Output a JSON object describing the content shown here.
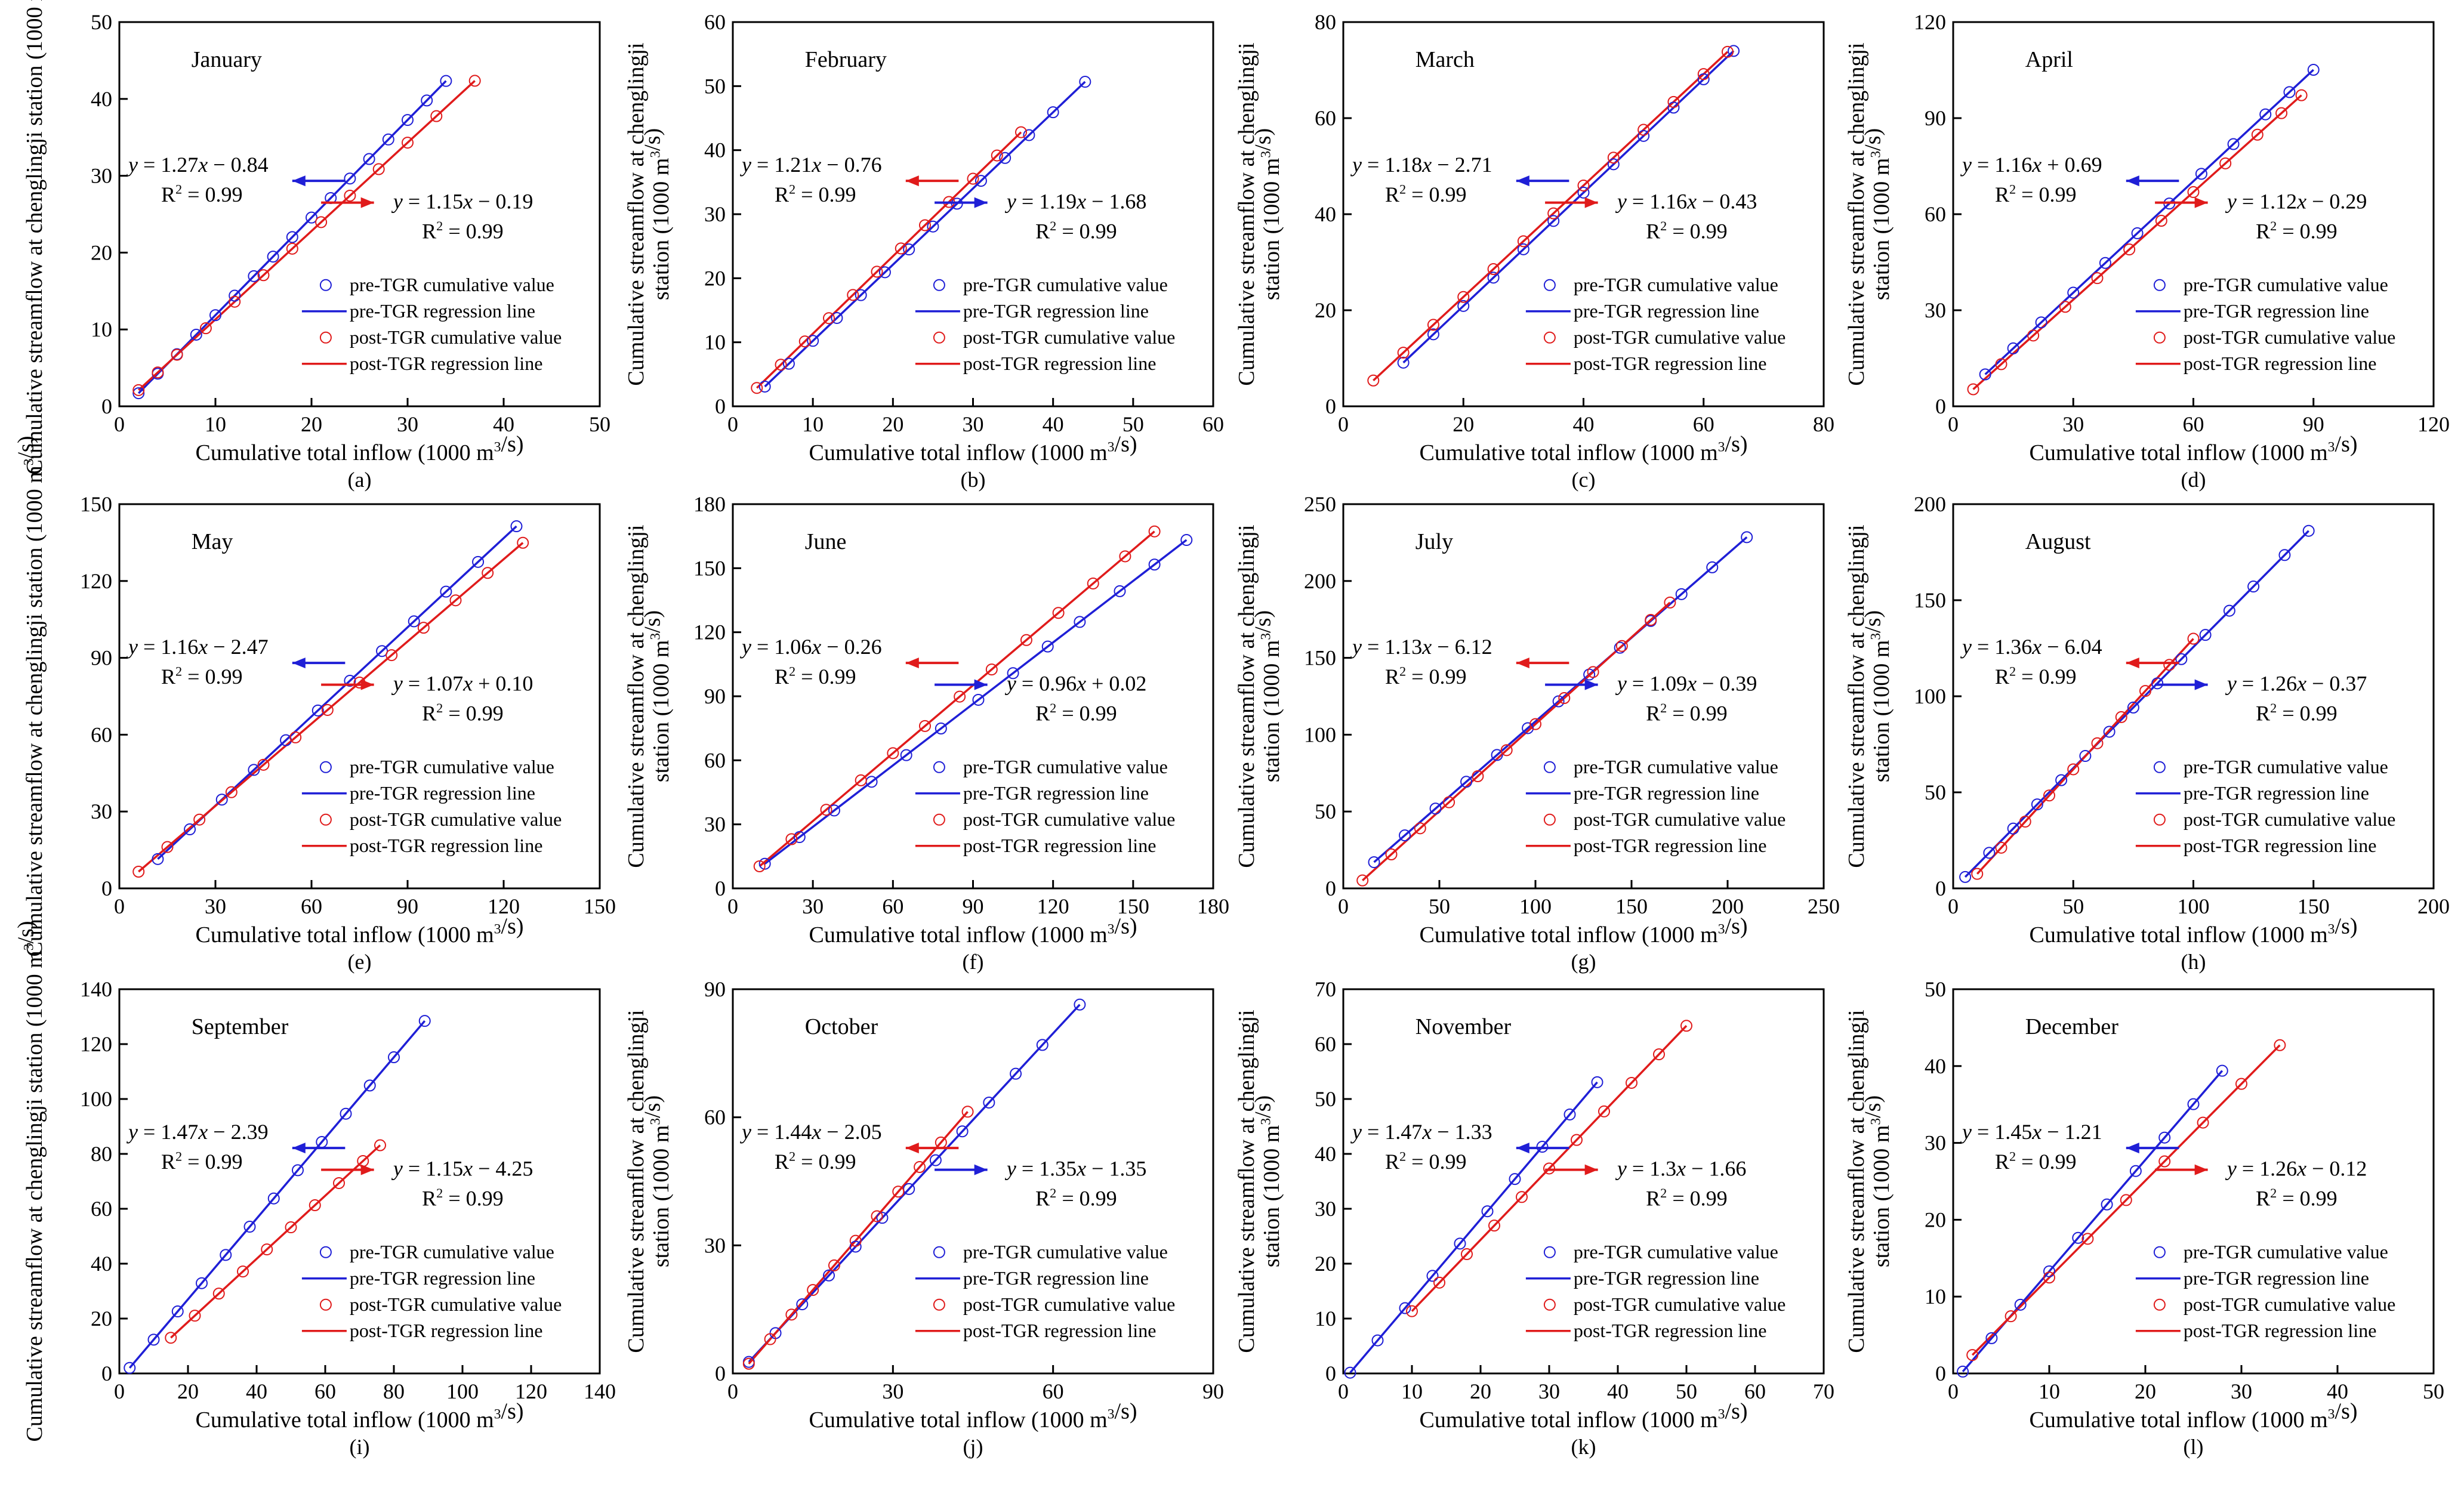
{
  "colors": {
    "pre": "#1f1fd6",
    "post": "#e01b1b",
    "axis": "#000000"
  },
  "legend_labels": {
    "pre_points": "pre-TGR cumulative value",
    "pre_line": "pre-TGR regression line",
    "post_points": "post-TGR cumulative value",
    "post_line": "post-TGR regression line"
  },
  "axis_labels": {
    "xlabel": "Cumulative total inflow (1000 m³/s)",
    "ylabel_full": "Cumulative streamflow at chenglingji station (1000 m³/s)",
    "ylabel_short": "station (1000 m³/s)"
  },
  "chart_data": [
    {
      "type": "scatter",
      "panel": "(a)",
      "title": "January",
      "xlim": [
        0,
        50
      ],
      "ylim": [
        0,
        50
      ],
      "xticks": [
        0,
        10,
        20,
        30,
        40,
        50
      ],
      "yticks": [
        0,
        10,
        20,
        30,
        40,
        50
      ],
      "pre": {
        "slope": 1.27,
        "intercept": -0.84,
        "r2": "0.99",
        "x": [
          2,
          4,
          6,
          8,
          10,
          12,
          14,
          16,
          18,
          20,
          22,
          24,
          26,
          28,
          30,
          32,
          34
        ]
      },
      "post": {
        "slope": 1.15,
        "intercept": -0.19,
        "r2": "0.99",
        "x": [
          2,
          4,
          6,
          9,
          12,
          15,
          18,
          21,
          24,
          27,
          30,
          33,
          37
        ]
      },
      "pre_eq": "y = 1.27x − 0.84",
      "post_eq": "y = 1.15x − 0.19"
    },
    {
      "type": "scatter",
      "panel": "(b)",
      "title": "February",
      "xlim": [
        0,
        60
      ],
      "ylim": [
        0,
        60
      ],
      "xticks": [
        0,
        10,
        20,
        30,
        40,
        50,
        60
      ],
      "yticks": [
        0,
        10,
        20,
        30,
        40,
        50,
        60
      ],
      "pre": {
        "slope": 1.19,
        "intercept": -1.68,
        "r2": "0.99",
        "x": [
          4,
          7,
          10,
          13,
          16,
          19,
          22,
          25,
          28,
          31,
          34,
          37,
          40,
          44
        ]
      },
      "post": {
        "slope": 1.21,
        "intercept": -0.76,
        "r2": "0.99",
        "x": [
          3,
          6,
          9,
          12,
          15,
          18,
          21,
          24,
          27,
          30,
          33,
          36
        ]
      },
      "pre_eq": "y = 1.19x − 1.68",
      "post_eq": "y = 1.21x − 0.76"
    },
    {
      "type": "scatter",
      "panel": "(c)",
      "title": "March",
      "xlim": [
        0,
        80
      ],
      "ylim": [
        0,
        80
      ],
      "xticks": [
        0,
        20,
        40,
        60,
        80
      ],
      "yticks": [
        0,
        20,
        40,
        60,
        80
      ],
      "pre": {
        "slope": 1.18,
        "intercept": -2.71,
        "r2": "0.99",
        "x": [
          10,
          15,
          20,
          25,
          30,
          35,
          40,
          45,
          50,
          55,
          60,
          65
        ]
      },
      "post": {
        "slope": 1.16,
        "intercept": -0.43,
        "r2": "0.99",
        "x": [
          5,
          10,
          15,
          20,
          25,
          30,
          35,
          40,
          45,
          50,
          55,
          60,
          64
        ]
      },
      "pre_eq": "y = 1.18x − 2.71",
      "post_eq": "y = 1.16x − 0.43"
    },
    {
      "type": "scatter",
      "panel": "(d)",
      "title": "April",
      "xlim": [
        0,
        120
      ],
      "ylim": [
        0,
        120
      ],
      "xticks": [
        0,
        30,
        60,
        90,
        120
      ],
      "yticks": [
        0,
        30,
        60,
        90,
        120
      ],
      "pre": {
        "slope": 1.16,
        "intercept": 0.69,
        "r2": "0.99",
        "x": [
          8,
          15,
          22,
          30,
          38,
          46,
          54,
          62,
          70,
          78,
          84,
          90
        ]
      },
      "post": {
        "slope": 1.12,
        "intercept": -0.29,
        "r2": "0.99",
        "x": [
          5,
          12,
          20,
          28,
          36,
          44,
          52,
          60,
          68,
          76,
          82,
          87
        ]
      },
      "pre_eq": "y = 1.16x + 0.69",
      "post_eq": "y = 1.12x − 0.29"
    },
    {
      "type": "scatter",
      "panel": "(e)",
      "title": "May",
      "xlim": [
        0,
        150
      ],
      "ylim": [
        0,
        150
      ],
      "xticks": [
        0,
        30,
        60,
        90,
        120,
        150
      ],
      "yticks": [
        0,
        30,
        60,
        90,
        120,
        150
      ],
      "pre": {
        "slope": 1.16,
        "intercept": -2.47,
        "r2": "0.99",
        "x": [
          12,
          22,
          32,
          42,
          52,
          62,
          72,
          82,
          92,
          102,
          112,
          124
        ]
      },
      "post": {
        "slope": 1.07,
        "intercept": 0.1,
        "r2": "0.99",
        "x": [
          6,
          15,
          25,
          35,
          45,
          55,
          65,
          75,
          85,
          95,
          105,
          115,
          126
        ]
      },
      "pre_eq": "y = 1.16x − 2.47",
      "post_eq": "y = 1.07x + 0.10"
    },
    {
      "type": "scatter",
      "panel": "(f)",
      "title": "June",
      "xlim": [
        0,
        180
      ],
      "ylim": [
        0,
        180
      ],
      "xticks": [
        0,
        30,
        60,
        90,
        120,
        150,
        180
      ],
      "yticks": [
        0,
        30,
        60,
        90,
        120,
        150,
        180
      ],
      "pre": {
        "slope": 0.96,
        "intercept": 0.02,
        "r2": "0.99",
        "x": [
          12,
          25,
          38,
          52,
          65,
          78,
          92,
          105,
          118,
          130,
          145,
          158,
          170
        ]
      },
      "post": {
        "slope": 1.06,
        "intercept": -0.26,
        "r2": "0.99",
        "x": [
          10,
          22,
          35,
          48,
          60,
          72,
          85,
          97,
          110,
          122,
          135,
          147,
          158
        ]
      },
      "pre_eq": "y = 0.96x + 0.02",
      "post_eq": "y = 1.06x − 0.26"
    },
    {
      "type": "scatter",
      "panel": "(g)",
      "title": "July",
      "xlim": [
        0,
        250
      ],
      "ylim": [
        0,
        250
      ],
      "xticks": [
        0,
        50,
        100,
        150,
        200,
        250
      ],
      "yticks": [
        0,
        50,
        100,
        150,
        200,
        250
      ],
      "pre": {
        "slope": 1.09,
        "intercept": -0.39,
        "r2": "0.99",
        "x": [
          16,
          32,
          48,
          64,
          80,
          96,
          112,
          128,
          144,
          160,
          176,
          192,
          210
        ]
      },
      "post": {
        "slope": 1.13,
        "intercept": -6.12,
        "r2": "0.99",
        "x": [
          10,
          25,
          40,
          55,
          70,
          85,
          100,
          115,
          130,
          145,
          160,
          170
        ]
      },
      "pre_eq": "y = 1.09x − 0.39",
      "post_eq": "y = 1.13x − 6.12"
    },
    {
      "type": "scatter",
      "panel": "(h)",
      "title": "August",
      "xlim": [
        0,
        200
      ],
      "ylim": [
        0,
        200
      ],
      "xticks": [
        0,
        50,
        100,
        150,
        200
      ],
      "yticks": [
        0,
        50,
        100,
        150,
        200
      ],
      "pre": {
        "slope": 1.26,
        "intercept": -0.37,
        "r2": "0.99",
        "x": [
          5,
          15,
          25,
          35,
          45,
          55,
          65,
          75,
          85,
          95,
          105,
          115,
          125,
          138,
          148
        ]
      },
      "post": {
        "slope": 1.36,
        "intercept": -6.04,
        "r2": "0.99",
        "x": [
          10,
          20,
          30,
          40,
          50,
          60,
          70,
          80,
          90,
          100
        ]
      },
      "pre_eq": "y = 1.26x − 0.37",
      "post_eq": "y = 1.36x − 6.04"
    },
    {
      "type": "scatter",
      "panel": "(i)",
      "title": "September",
      "xlim": [
        0,
        140
      ],
      "ylim": [
        0,
        140
      ],
      "xticks": [
        0,
        20,
        40,
        60,
        80,
        100,
        120,
        140
      ],
      "yticks": [
        0,
        20,
        40,
        60,
        80,
        100,
        120,
        140
      ],
      "pre": {
        "slope": 1.47,
        "intercept": -2.39,
        "r2": "0.99",
        "x": [
          3,
          10,
          17,
          24,
          31,
          38,
          45,
          52,
          59,
          66,
          73,
          80,
          89
        ]
      },
      "post": {
        "slope": 1.15,
        "intercept": -4.25,
        "r2": "0.99",
        "x": [
          15,
          22,
          29,
          36,
          43,
          50,
          57,
          64,
          71,
          76
        ]
      },
      "pre_eq": "y = 1.47x − 2.39",
      "post_eq": "y = 1.15x − 4.25"
    },
    {
      "type": "scatter",
      "panel": "(j)",
      "title": "October",
      "xlim": [
        0,
        90
      ],
      "ylim": [
        0,
        90
      ],
      "xticks": [
        0,
        30,
        60,
        90
      ],
      "yticks": [
        0,
        30,
        60,
        90
      ],
      "pre": {
        "slope": 1.35,
        "intercept": -1.35,
        "r2": "0.99",
        "x": [
          3,
          8,
          13,
          18,
          23,
          28,
          33,
          38,
          43,
          48,
          53,
          58,
          65
        ]
      },
      "post": {
        "slope": 1.44,
        "intercept": -2.05,
        "r2": "0.99",
        "x": [
          3,
          7,
          11,
          15,
          19,
          23,
          27,
          31,
          35,
          39,
          44
        ]
      },
      "pre_eq": "y = 1.35x − 1.35",
      "post_eq": "y = 1.44x − 2.05"
    },
    {
      "type": "scatter",
      "panel": "(k)",
      "title": "November",
      "xlim": [
        0,
        70
      ],
      "ylim": [
        0,
        70
      ],
      "xticks": [
        0,
        10,
        20,
        30,
        40,
        50,
        60,
        70
      ],
      "yticks": [
        0,
        10,
        20,
        30,
        40,
        50,
        60,
        70
      ],
      "pre": {
        "slope": 1.47,
        "intercept": -1.33,
        "r2": "0.99",
        "x": [
          1,
          5,
          9,
          13,
          17,
          21,
          25,
          29,
          33,
          37
        ]
      },
      "post": {
        "slope": 1.3,
        "intercept": -1.66,
        "r2": "0.99",
        "x": [
          10,
          14,
          18,
          22,
          26,
          30,
          34,
          38,
          42,
          46,
          50
        ]
      },
      "pre_eq": "y = 1.47x − 1.33",
      "post_eq": "y = 1.3x − 1.66"
    },
    {
      "type": "scatter",
      "panel": "(l)",
      "title": "December",
      "xlim": [
        0,
        50
      ],
      "ylim": [
        0,
        50
      ],
      "xticks": [
        0,
        10,
        20,
        30,
        40,
        50
      ],
      "yticks": [
        0,
        10,
        20,
        30,
        40,
        50
      ],
      "pre": {
        "slope": 1.45,
        "intercept": -1.21,
        "r2": "0.99",
        "x": [
          1,
          4,
          7,
          10,
          13,
          16,
          19,
          22,
          25,
          28
        ]
      },
      "post": {
        "slope": 1.26,
        "intercept": -0.12,
        "r2": "0.99",
        "x": [
          2,
          6,
          10,
          14,
          18,
          22,
          26,
          30,
          34
        ]
      },
      "pre_eq": "y = 1.45x − 1.21",
      "post_eq": "y = 1.26x − 0.12"
    }
  ]
}
